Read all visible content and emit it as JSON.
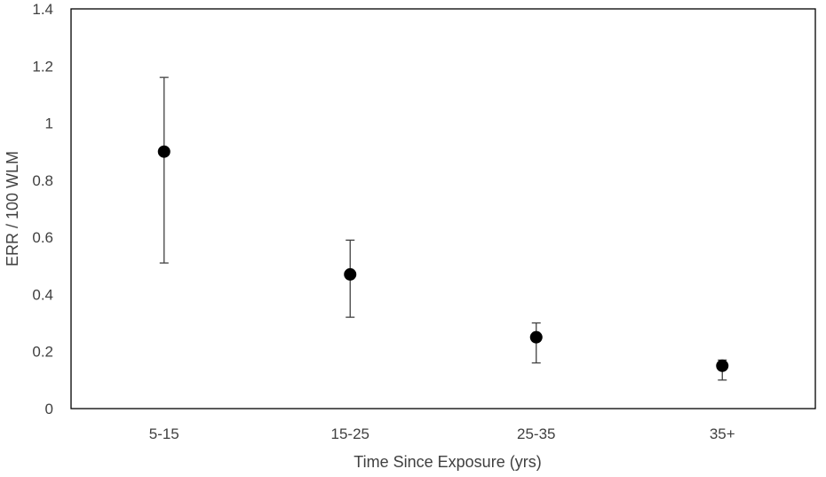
{
  "chart_data": {
    "type": "scatter",
    "title": "",
    "xlabel": "Time Since Exposure (yrs)",
    "ylabel": "ERR / 100 WLM",
    "categories": [
      "5-15",
      "15-25",
      "25-35",
      "35+"
    ],
    "values": [
      0.9,
      0.47,
      0.25,
      0.15
    ],
    "error_lower": [
      0.51,
      0.32,
      0.16,
      0.1
    ],
    "error_upper": [
      1.16,
      0.59,
      0.3,
      0.17
    ],
    "ylim": [
      0,
      1.4
    ],
    "yticks": [
      "0",
      "0.2",
      "0.4",
      "0.6",
      "0.8",
      "1",
      "1.2",
      "1.4"
    ],
    "grid": false,
    "legend": "none",
    "marker_color": "#000000",
    "errorbar_color": "#404040"
  }
}
